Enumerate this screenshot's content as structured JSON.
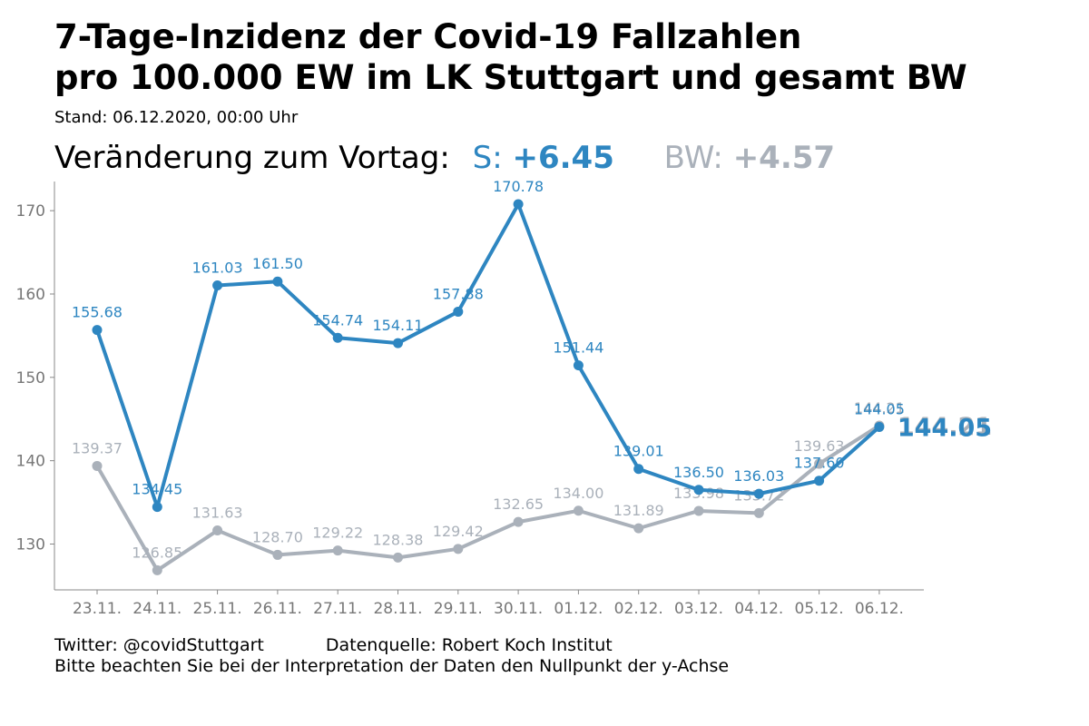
{
  "header": {
    "title_line1": "7-Tage-Inzidenz der Covid-19 Fallzahlen",
    "title_line2": "pro 100.000 EW im LK Stuttgart und gesamt BW",
    "stand": "Stand: 06.12.2020, 00:00 Uhr",
    "change_label": "Veränderung zum Vortag:",
    "s_label": "S:",
    "s_change": "+6.45",
    "bw_label": "BW:",
    "bw_change": "+4.57"
  },
  "footer": {
    "twitter": "Twitter: @covidStuttgart",
    "source": "Datenquelle: Robert Koch Institut",
    "note": "Bitte beachten Sie bei der Interpretation der Daten den Nullpunkt der y-Achse"
  },
  "colors": {
    "stuttgart": "#2e86c1",
    "bw": "#aab1ba",
    "axis": "#888888",
    "tick_label": "#777777"
  },
  "chart_data": {
    "type": "line",
    "title": "7-Tage-Inzidenz der Covid-19 Fallzahlen pro 100.000 EW im LK Stuttgart und gesamt BW",
    "xlabel": "",
    "ylabel": "",
    "categories": [
      "23.11.",
      "24.11.",
      "25.11.",
      "26.11.",
      "27.11.",
      "28.11.",
      "29.11.",
      "30.11.",
      "01.12.",
      "02.12.",
      "03.12.",
      "04.12.",
      "05.12.",
      "06.12."
    ],
    "ylim": [
      124.5,
      173.5
    ],
    "yticks": [
      130,
      140,
      150,
      160,
      170
    ],
    "grid": false,
    "series": [
      {
        "name": "BW",
        "color": "#aab1ba",
        "values": [
          139.37,
          126.85,
          131.63,
          128.7,
          129.22,
          128.38,
          129.42,
          132.65,
          134.0,
          131.89,
          133.98,
          133.72,
          139.63,
          144.21
        ],
        "labels": [
          "139.37",
          "126.85",
          "131.63",
          "128.70",
          "129.22",
          "128.38",
          "129.42",
          "132.65",
          "134.00",
          "131.89",
          "133.98",
          "133.72",
          "139.63",
          "144.21"
        ]
      },
      {
        "name": "S",
        "color": "#2e86c1",
        "values": [
          155.68,
          134.45,
          161.03,
          161.5,
          154.74,
          154.11,
          157.88,
          170.78,
          151.44,
          139.01,
          136.5,
          136.03,
          137.6,
          144.05
        ],
        "labels": [
          "155.68",
          "134.45",
          "161.03",
          "161.50",
          "154.74",
          "154.11",
          "157.88",
          "170.78",
          "151.44",
          "139.01",
          "136.50",
          "136.03",
          "137.60",
          "144.05"
        ]
      }
    ]
  }
}
